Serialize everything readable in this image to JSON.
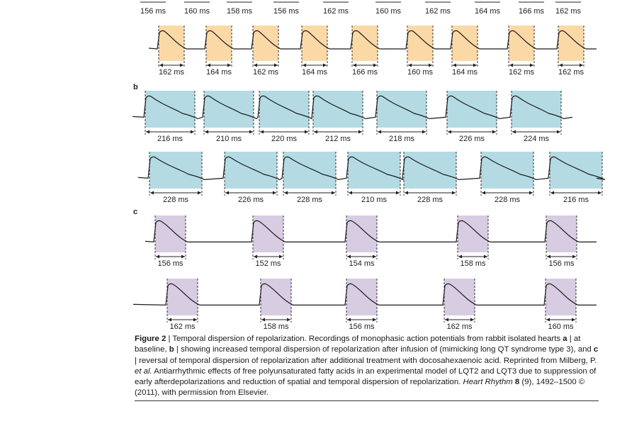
{
  "colors": {
    "a": "#fbd9a6",
    "b": "#b4dbe4",
    "c": "#d8cce3"
  },
  "panels": [
    {
      "letter": "",
      "color": "a",
      "rows": [
        {
          "y": 15,
          "labels_only": true,
          "beats": [
            {
              "label": "156 ms"
            },
            {
              "label": "160 ms"
            },
            {
              "label": "158 ms"
            },
            {
              "label": "156 ms"
            },
            {
              "label": "162 ms"
            },
            {
              "label": "160 ms"
            },
            {
              "label": "162 ms"
            },
            {
              "label": "164 ms"
            },
            {
              "label": "166 ms"
            },
            {
              "label": "162 ms"
            }
          ]
        },
        {
          "y": 36,
          "beats": [
            {
              "label": "162 ms"
            },
            {
              "label": "164 ms"
            },
            {
              "label": "162 ms"
            },
            {
              "label": "164 ms"
            },
            {
              "label": "166 ms"
            },
            {
              "label": "160 ms"
            },
            {
              "label": "164 ms"
            },
            {
              "label": "162 ms"
            },
            {
              "label": "162 ms"
            }
          ]
        }
      ]
    },
    {
      "letter": "b",
      "color": "b",
      "rows": [
        {
          "y": 128,
          "beats": [
            {
              "label": "216 ms"
            },
            {
              "label": "210 ms"
            },
            {
              "label": "220 ms"
            },
            {
              "label": "212 ms"
            },
            {
              "label": "218 ms"
            },
            {
              "label": "226 ms"
            },
            {
              "label": "224 ms"
            }
          ]
        },
        {
          "y": 214,
          "beats": [
            {
              "label": "228 ms"
            },
            {
              "label": "226 ms"
            },
            {
              "label": "228 ms"
            },
            {
              "label": "210 ms"
            },
            {
              "label": "228 ms"
            },
            {
              "label": "228 ms"
            },
            {
              "label": "216 ms"
            }
          ]
        }
      ]
    },
    {
      "letter": "c",
      "color": "c",
      "rows": [
        {
          "y": 304,
          "beats": [
            {
              "label": "156 ms"
            },
            {
              "label": "152 ms"
            },
            {
              "label": "154 ms"
            },
            {
              "label": "158 ms"
            },
            {
              "label": "156 ms"
            }
          ]
        },
        {
          "y": 393,
          "beats": [
            {
              "label": "162 ms"
            },
            {
              "label": "158 ms"
            },
            {
              "label": "156 ms"
            },
            {
              "label": "162 ms"
            },
            {
              "label": "160 ms"
            }
          ]
        }
      ]
    }
  ],
  "caption": {
    "fig_label": "Figure 2",
    "t1": " | Temporal dispersion of repolarization. Recordings of monophasic action potentials from rabbit isolated hearts",
    "a": "a",
    "t2": " | at baseline, ",
    "b": "b",
    "t3": " | showing increased temporal dispersion of repolarization after infusion of (mimicking long QT syndrome type 3), and ",
    "c": "c",
    "t4": " | reversal of temporal dispersion of repolarization after additional treatment with docosahexaenoic acid. Reprinted from Milberg, P. ",
    "etal": "et al.",
    "t5": " Antiarrhythmic effects of free polyunsaturated fatty acids in an experimental model of LQT2 and LQT3 due to suppression of early afterdepolarizations and reduction of spatial and temporal dispersion of repolarization. ",
    "journal": "Heart Rhythm",
    "vol": " 8",
    "t6": " (9), 1492–1500 © (2011), with permission from Elsevier."
  }
}
